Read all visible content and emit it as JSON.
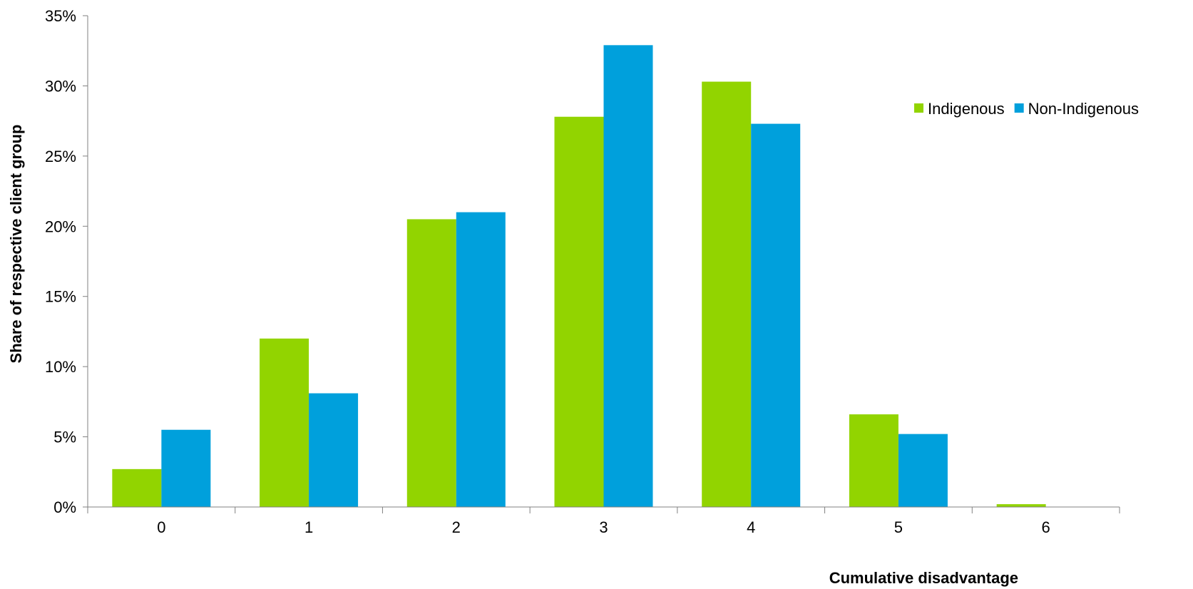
{
  "chart_data": {
    "type": "bar",
    "title": "",
    "xlabel": "Cumulative disadvantage",
    "ylabel": "Share of respective client group",
    "categories": [
      "0",
      "1",
      "2",
      "3",
      "4",
      "5",
      "6"
    ],
    "series": [
      {
        "name": "Indigenous",
        "color": "#92D400",
        "values": [
          2.7,
          12.0,
          20.5,
          27.8,
          30.3,
          6.6,
          0.2
        ]
      },
      {
        "name": "Non-Indigenous",
        "color": "#00A0DC",
        "values": [
          5.5,
          8.1,
          21.0,
          32.9,
          27.3,
          5.2,
          0.0
        ]
      }
    ],
    "ylim": [
      0,
      35
    ],
    "ytick_values": [
      0,
      5,
      10,
      15,
      20,
      25,
      30,
      35
    ],
    "ytick_labels": [
      "0%",
      "5%",
      "10%",
      "15%",
      "20%",
      "25%",
      "30%",
      "35%"
    ],
    "grid": false,
    "legend_position": "top-right"
  }
}
